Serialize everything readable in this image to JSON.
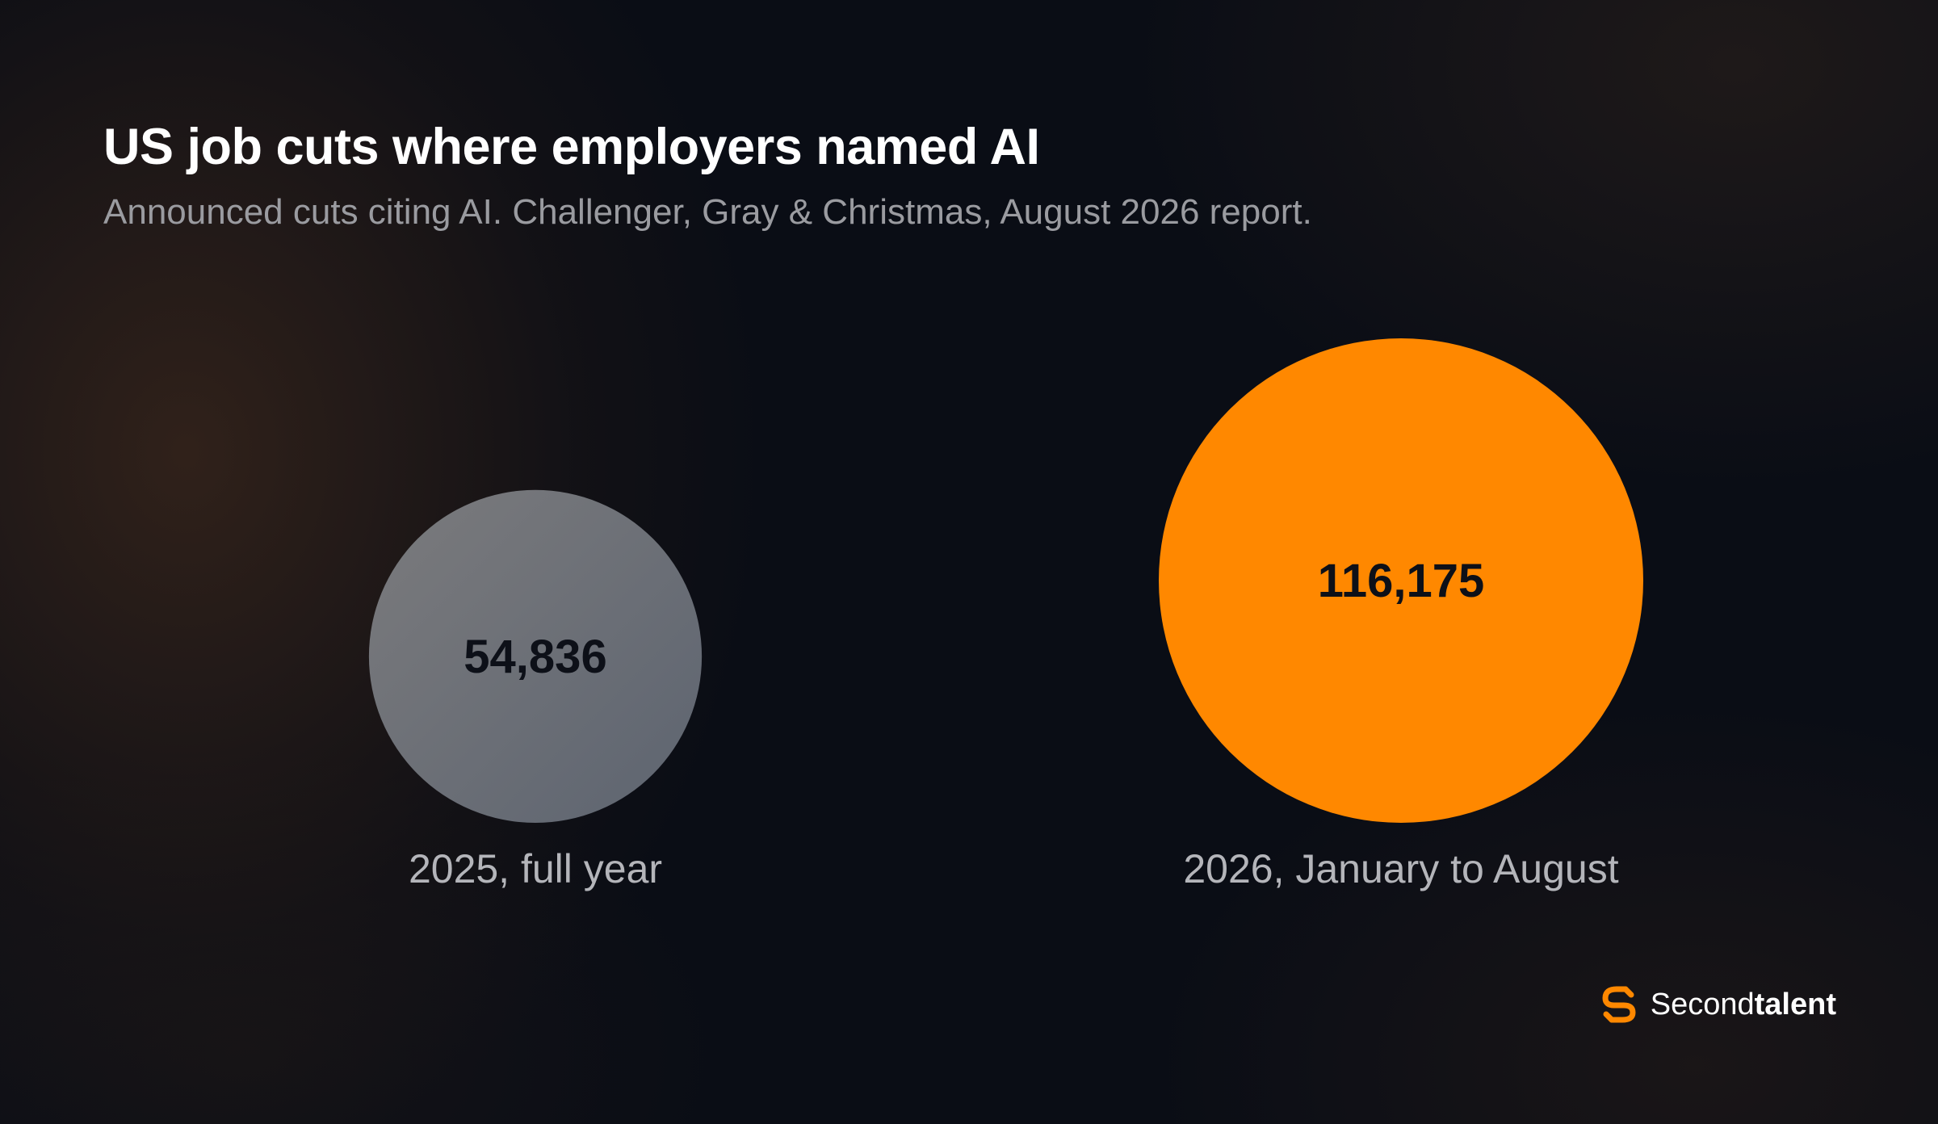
{
  "colors": {
    "background": "#0a0d15",
    "accent": "#ff8800",
    "muted_bubble": "#6b6e76"
  },
  "brand": {
    "icon": "secondtalent-logo-icon",
    "name_light": "Second",
    "name_bold": "talent"
  },
  "chart_data": {
    "type": "bubble",
    "title": "US job cuts where employers named AI",
    "subtitle": "Announced cuts citing AI. Challenger, Gray & Christmas, August 2026 report.",
    "categories": [
      "2025, full year",
      "2026, January to August"
    ],
    "values": [
      54836,
      116175
    ],
    "value_labels": [
      "54,836",
      "116,175"
    ],
    "colors": [
      "#6b6e76",
      "#ff8800"
    ],
    "size_encoding": "area"
  }
}
